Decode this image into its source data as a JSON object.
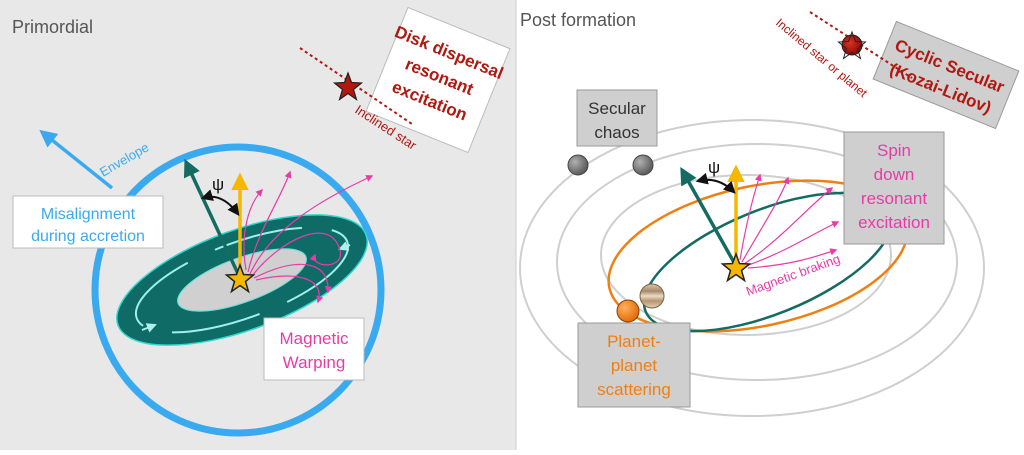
{
  "left_panel": {
    "title": "Primordial",
    "envelope_label": "Envelope",
    "psi_symbol": "ψ",
    "misalignment_line1": "Misalignment",
    "misalignment_line2": "during accretion",
    "magnetic_line1": "Magnetic",
    "magnetic_line2": "Warping",
    "disk_dispersal_line1": "Disk dispersal",
    "disk_dispersal_line2": "resonant",
    "disk_dispersal_line3": "excitation",
    "inclined_star_label": "Inclined star"
  },
  "right_panel": {
    "title": "Post formation",
    "secular_chaos_line1": "Secular",
    "secular_chaos_line2": "chaos",
    "cyclic_line1": "Cyclic Secular",
    "cyclic_line2": "(Kozai-Lidov)",
    "inclined_star_planet_label": "Inclined star or planet",
    "spin_down_line1": "Spin",
    "spin_down_line2": "down",
    "spin_down_line3": "resonant",
    "spin_down_line4": "excitation",
    "psi_symbol": "ψ",
    "magnetic_braking_label": "Magnetic braking",
    "planet_scattering_line1": "Planet-",
    "planet_scattering_line2": "planet",
    "planet_scattering_line3": "scattering"
  },
  "colors": {
    "left_bg": "#e8e8e8",
    "envelope_blue": "#3aaaf0",
    "disk_teal": "#0e6b66",
    "spin_arrow": "#f5b800",
    "axis_arrow": "#136b61",
    "magenta": "#e63ca8",
    "dark_red": "#b01810",
    "orange": "#f07f12",
    "grey_box": "#cfcfcf"
  }
}
